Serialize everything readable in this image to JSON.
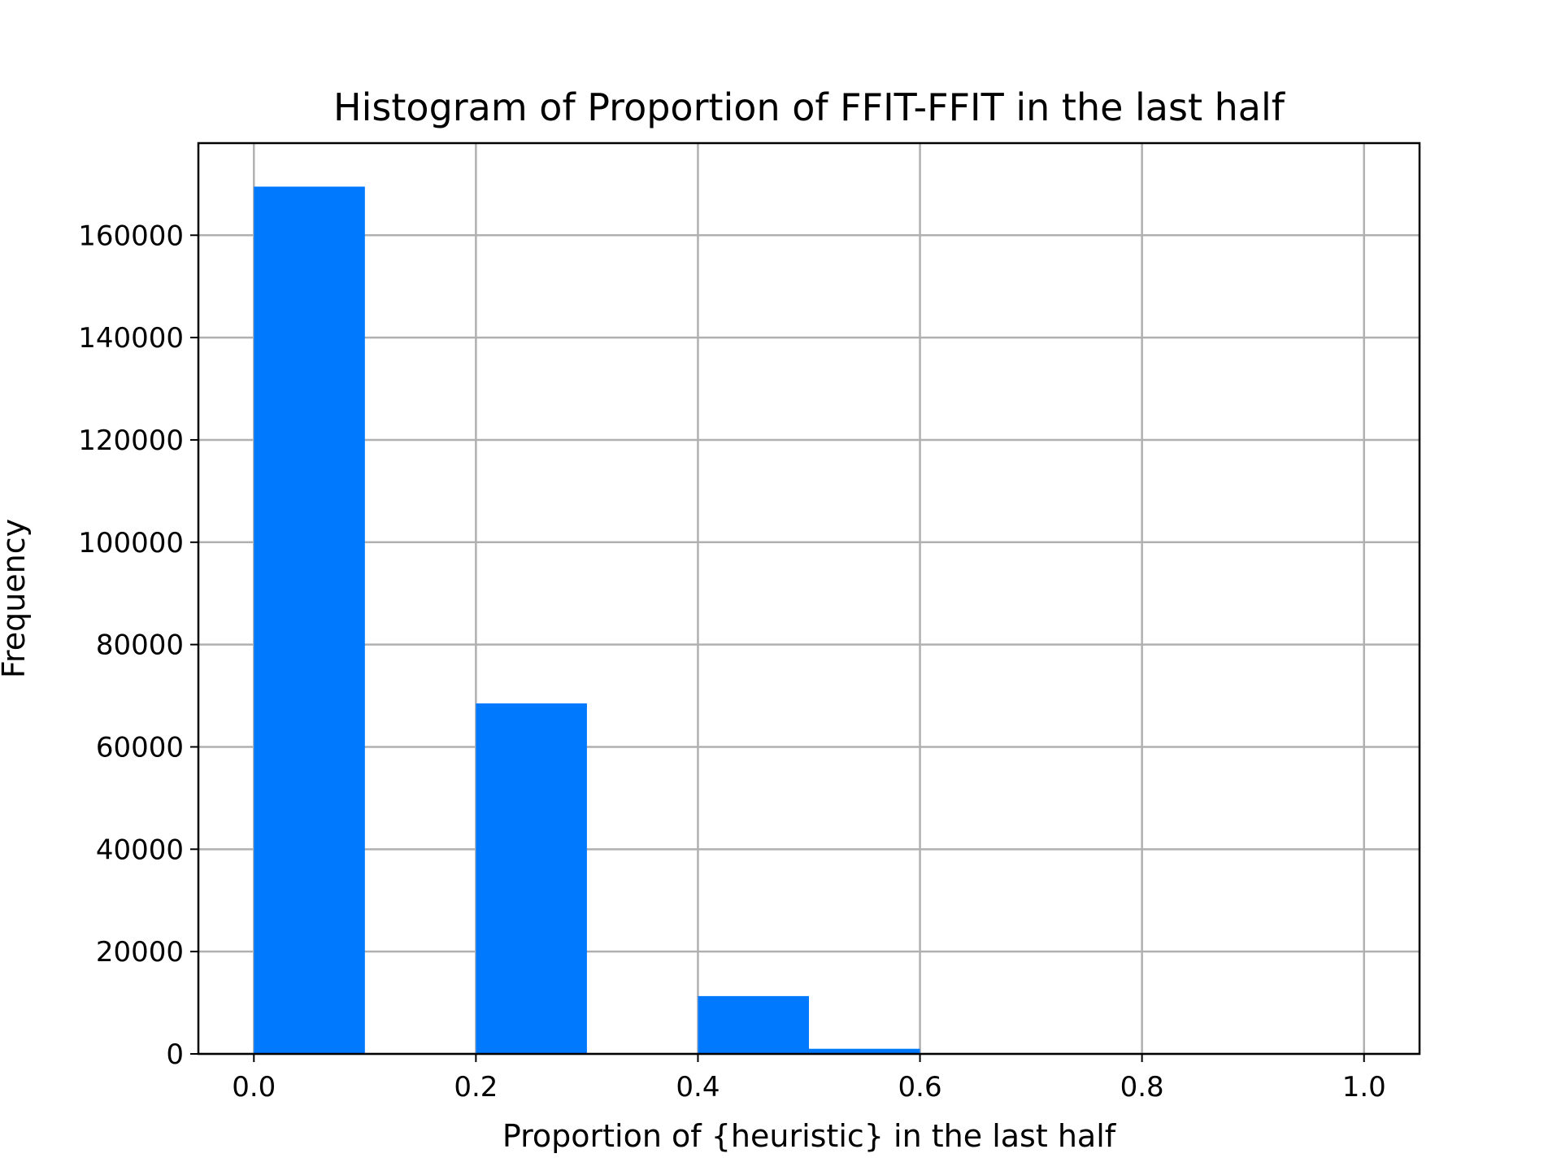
{
  "chart_data": {
    "type": "bar",
    "title": "Histogram of Proportion of FFIT-FFIT in the last half",
    "xlabel": "Proportion of {heuristic} in the last half",
    "ylabel": "Frequency",
    "xlim": [
      -0.05,
      1.05
    ],
    "ylim": [
      0,
      178000
    ],
    "x_ticks": [
      "0.0",
      "0.2",
      "0.4",
      "0.6",
      "0.8",
      "1.0"
    ],
    "y_ticks": [
      "0",
      "20000",
      "40000",
      "60000",
      "80000",
      "100000",
      "120000",
      "140000",
      "160000"
    ],
    "grid": true,
    "bar_color": "#0079ff",
    "bins": [
      {
        "start": 0.0,
        "end": 0.1,
        "value": 169500
      },
      {
        "start": 0.1,
        "end": 0.2,
        "value": 0
      },
      {
        "start": 0.2,
        "end": 0.3,
        "value": 68500
      },
      {
        "start": 0.3,
        "end": 0.4,
        "value": 0
      },
      {
        "start": 0.4,
        "end": 0.5,
        "value": 11300
      },
      {
        "start": 0.5,
        "end": 0.6,
        "value": 1000
      },
      {
        "start": 0.6,
        "end": 0.7,
        "value": 0
      },
      {
        "start": 0.7,
        "end": 0.8,
        "value": 0
      },
      {
        "start": 0.8,
        "end": 0.9,
        "value": 0
      },
      {
        "start": 0.9,
        "end": 1.0,
        "value": 0
      }
    ]
  }
}
